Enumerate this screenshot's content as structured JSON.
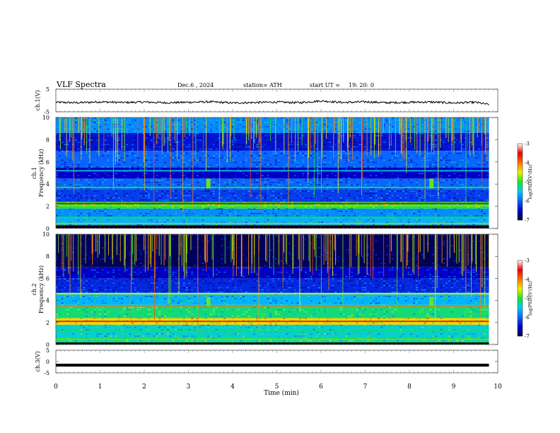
{
  "header": {
    "title": "VLF  Spectra",
    "date": "Dec.6  , 2024",
    "station": "station= ATH",
    "start_ut_label": "start  UT  =",
    "start_ut_value": "19: 20: 0"
  },
  "colors": {
    "trace": "#000000",
    "frame": "#555555",
    "colormap": [
      "#000040",
      "#0000c8",
      "#0a64ff",
      "#00c8ff",
      "#1ee61e",
      "#f0f000",
      "#ff7000",
      "#e60000",
      "#ffffff"
    ]
  },
  "chart_data": [
    {
      "type": "line",
      "panel": "ch1-voltage",
      "ylabel": "ch.1(V)",
      "ylim": [
        -5,
        5
      ],
      "yticks": [
        "5",
        "-5"
      ],
      "xlim": [
        0,
        10
      ],
      "x": [
        0.0,
        0.5,
        1.0,
        1.5,
        2.0,
        2.5,
        3.0,
        3.5,
        4.0,
        4.5,
        5.0,
        5.5,
        6.0,
        6.5,
        7.0,
        7.5,
        8.0,
        8.5,
        9.0,
        9.5,
        9.8
      ],
      "y": [
        -0.8,
        -1.0,
        -0.6,
        -0.9,
        -0.7,
        -1.0,
        -0.8,
        -0.6,
        -1.1,
        -0.9,
        -0.7,
        -1.0,
        -0.2,
        -0.9,
        -0.6,
        -1.0,
        -0.8,
        -0.7,
        -1.1,
        -0.8,
        -1.8
      ]
    },
    {
      "type": "heatmap",
      "panel": "ch1-spectrogram",
      "ylabel": "ch.1\nFrequency  (kHz)",
      "ylim": [
        0,
        10
      ],
      "yticks": [
        "10",
        "8",
        "6",
        "4",
        "2",
        "0"
      ],
      "xlim": [
        0,
        10
      ],
      "colorbar": {
        "label": "log(PSD)(V²/Hz)",
        "range": [
          -7,
          -3
        ],
        "ticks": [
          "-3",
          "-4",
          "-5",
          "-6",
          "-7"
        ]
      },
      "bands": [
        {
          "from_khz": 0.0,
          "to_khz": 0.3,
          "level": -7.0
        },
        {
          "from_khz": 0.3,
          "to_khz": 1.0,
          "level": -5.6
        },
        {
          "from_khz": 1.0,
          "to_khz": 1.8,
          "level": -5.8
        },
        {
          "from_khz": 1.8,
          "to_khz": 2.4,
          "level": -5.0
        },
        {
          "from_khz": 2.4,
          "to_khz": 3.5,
          "level": -6.2
        },
        {
          "from_khz": 3.5,
          "to_khz": 4.5,
          "level": -6.0
        },
        {
          "from_khz": 4.5,
          "to_khz": 5.5,
          "level": -6.5
        },
        {
          "from_khz": 5.5,
          "to_khz": 7.0,
          "level": -6.0
        },
        {
          "from_khz": 7.0,
          "to_khz": 8.6,
          "level": -6.4
        },
        {
          "from_khz": 8.6,
          "to_khz": 10.0,
          "level": -5.8
        }
      ],
      "lines": [
        {
          "khz": 0.45,
          "level": -4.2
        },
        {
          "khz": 1.0,
          "level": -5.0
        },
        {
          "khz": 2.25,
          "level": -3.5
        },
        {
          "khz": 2.05,
          "level": -4.8
        },
        {
          "khz": 3.7,
          "level": -5.0
        },
        {
          "khz": 5.2,
          "level": -5.4
        }
      ],
      "emissions": [
        {
          "t_min": 3.45,
          "from_khz": 3.6,
          "to_khz": 4.5,
          "level": -4.8
        },
        {
          "t_min": 8.5,
          "from_khz": 3.6,
          "to_khz": 4.5,
          "level": -4.8
        }
      ]
    },
    {
      "type": "heatmap",
      "panel": "ch2-spectrogram",
      "ylabel": "ch.2\nFrequency  (kHz)",
      "ylim": [
        0,
        10
      ],
      "yticks": [
        "10",
        "8",
        "6",
        "4",
        "2",
        "0"
      ],
      "xlim": [
        0,
        10
      ],
      "colorbar": {
        "label": "log(PSD)(V²/Hz)",
        "range": [
          -7,
          -3
        ],
        "ticks": [
          "-3",
          "-4",
          "-5",
          "-6",
          "-7"
        ]
      },
      "bands": [
        {
          "from_khz": 0.0,
          "to_khz": 0.4,
          "level": -5.2
        },
        {
          "from_khz": 0.4,
          "to_khz": 1.8,
          "level": -5.4
        },
        {
          "from_khz": 1.8,
          "to_khz": 2.4,
          "level": -4.4
        },
        {
          "from_khz": 2.4,
          "to_khz": 3.6,
          "level": -5.2
        },
        {
          "from_khz": 3.6,
          "to_khz": 4.7,
          "level": -5.6
        },
        {
          "from_khz": 4.7,
          "to_khz": 6.0,
          "level": -6.3
        },
        {
          "from_khz": 6.0,
          "to_khz": 7.0,
          "level": -6.5
        },
        {
          "from_khz": 7.0,
          "to_khz": 10.0,
          "level": -6.9
        }
      ],
      "lines": [
        {
          "khz": 2.1,
          "level": -3.6
        },
        {
          "khz": 3.5,
          "level": -4.0
        },
        {
          "khz": 4.6,
          "level": -4.5
        },
        {
          "khz": 1.2,
          "level": -5.0
        },
        {
          "khz": 0.5,
          "level": -4.9
        }
      ],
      "emissions": [
        {
          "t_min": 3.45,
          "from_khz": 3.5,
          "to_khz": 4.3,
          "level": -4.8
        },
        {
          "t_min": 8.5,
          "from_khz": 3.5,
          "to_khz": 4.3,
          "level": -4.8
        }
      ]
    },
    {
      "type": "line",
      "panel": "ch3-voltage",
      "ylabel": "ch.3(V)",
      "ylim": [
        -5,
        5
      ],
      "yticks": [
        "5",
        "0",
        "-5"
      ],
      "xlim": [
        0,
        10
      ],
      "xlabel": "Time  (min)",
      "xticks": [
        "0",
        "1",
        "2",
        "3",
        "4",
        "5",
        "6",
        "7",
        "8",
        "9",
        "10"
      ],
      "x": [
        0.0,
        9.8
      ],
      "y": [
        -1.6,
        -1.6
      ]
    }
  ]
}
